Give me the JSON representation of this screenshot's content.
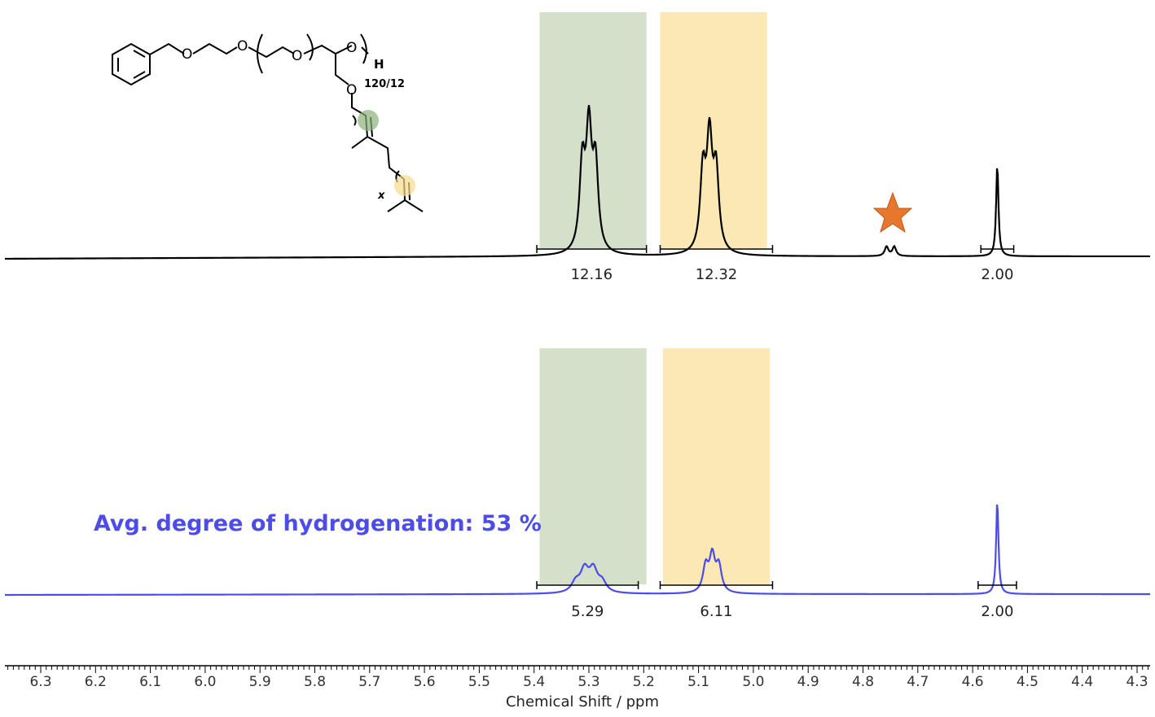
{
  "chart_data": [
    {
      "type": "line",
      "name": "top-spectrum",
      "color": "#000000",
      "xlabel": "Chemical Shift / ppm",
      "xlim": [
        6.36,
        4.27
      ],
      "x_reversed": true,
      "xticks": [
        "6.3",
        "6.2",
        "6.1",
        "6.0",
        "5.9",
        "5.8",
        "5.7",
        "5.6",
        "5.5",
        "5.4",
        "5.3",
        "5.2",
        "5.1",
        "5.0",
        "4.9",
        "4.8",
        "4.7",
        "4.6",
        "4.5",
        "4.4",
        "4.3"
      ],
      "peaks": [
        {
          "center": 5.3,
          "intensity": 1.0,
          "type": "triplet"
        },
        {
          "center": 5.08,
          "intensity": 0.92,
          "type": "triplet"
        },
        {
          "center": 4.75,
          "intensity": 0.05,
          "type": "doublet"
        },
        {
          "center": 4.555,
          "intensity": 0.49,
          "type": "singlet"
        }
      ],
      "highlight_regions": [
        {
          "from": 5.39,
          "to": 5.195,
          "color": "#d4e0c9"
        },
        {
          "from": 5.17,
          "to": 4.975,
          "color": "#fbe8b5"
        }
      ],
      "integrals": [
        {
          "from": 5.395,
          "to": 5.195,
          "value": "12.16"
        },
        {
          "from": 5.17,
          "to": 4.965,
          "value": "12.32"
        },
        {
          "from": 4.585,
          "to": 4.525,
          "value": "2.00"
        }
      ],
      "marker": {
        "shape": "star",
        "at": 4.75,
        "color": "#e8772e"
      }
    },
    {
      "type": "line",
      "name": "bottom-spectrum",
      "color": "#4c4ce8",
      "peaks": [
        {
          "center": 5.3,
          "intensity": 0.16,
          "type": "multiplet"
        },
        {
          "center": 5.075,
          "intensity": 0.23,
          "type": "triplet"
        },
        {
          "center": 4.555,
          "intensity": 0.38,
          "type": "singlet"
        }
      ],
      "highlight_regions": [
        {
          "from": 5.39,
          "to": 5.195,
          "color": "#d4e0c9"
        },
        {
          "from": 5.165,
          "to": 4.97,
          "color": "#fbe8b5"
        }
      ],
      "integrals": [
        {
          "from": 5.395,
          "to": 5.21,
          "value": "5.29"
        },
        {
          "from": 5.17,
          "to": 4.965,
          "value": "6.11"
        },
        {
          "from": 4.59,
          "to": 4.52,
          "value": "2.00"
        }
      ],
      "annotation": "Avg. degree of hydrogenation: 53 %"
    }
  ],
  "structure": {
    "repeat_label": "120/12",
    "end_group": "H",
    "oxygen": "O",
    "x_label": "x",
    "highlight_colors": [
      "#8cb07a",
      "#f5dc8c"
    ]
  }
}
